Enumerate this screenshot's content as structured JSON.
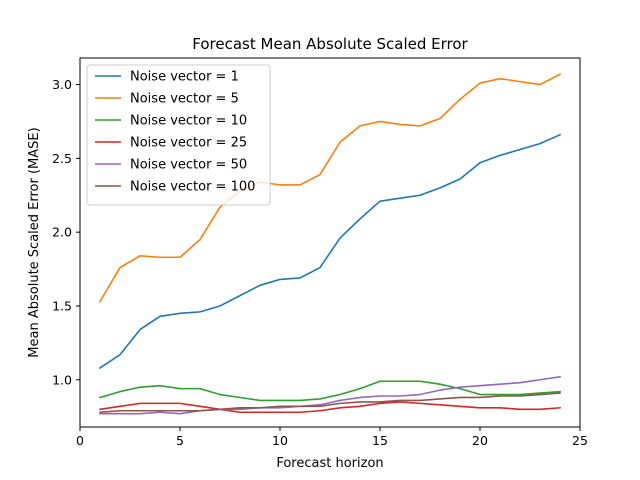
{
  "chart_data": {
    "type": "line",
    "title": "Forecast Mean Absolute Scaled Error",
    "xlabel": "Forecast horizon",
    "ylabel": "Mean Absolute Scaled Error (MASE)",
    "xlim": [
      0,
      25
    ],
    "ylim": [
      0.68,
      3.18
    ],
    "xticks": [
      0,
      5,
      10,
      15,
      20,
      25
    ],
    "yticks": [
      1.0,
      1.5,
      2.0,
      2.5,
      3.0
    ],
    "ytick_labels": [
      "1.0",
      "1.5",
      "2.0",
      "2.5",
      "3.0"
    ],
    "grid": false,
    "legend_position": "top-left",
    "x": [
      1,
      2,
      3,
      4,
      5,
      6,
      7,
      8,
      9,
      10,
      11,
      12,
      13,
      14,
      15,
      16,
      17,
      18,
      19,
      20,
      21,
      22,
      23,
      24
    ],
    "series": [
      {
        "name": "Noise vector = 1",
        "color": "#1f77b4",
        "values": [
          1.08,
          1.17,
          1.34,
          1.43,
          1.45,
          1.46,
          1.5,
          1.57,
          1.64,
          1.68,
          1.69,
          1.76,
          1.96,
          2.09,
          2.21,
          2.23,
          2.25,
          2.3,
          2.36,
          2.47,
          2.52,
          2.56,
          2.6,
          2.66
        ]
      },
      {
        "name": "Noise vector = 5",
        "color": "#ff7f0e",
        "values": [
          1.53,
          1.76,
          1.84,
          1.83,
          1.83,
          1.95,
          2.17,
          2.28,
          2.34,
          2.32,
          2.32,
          2.39,
          2.61,
          2.72,
          2.75,
          2.73,
          2.72,
          2.77,
          2.9,
          3.01,
          3.04,
          3.02,
          3.0,
          3.07
        ]
      },
      {
        "name": "Noise vector = 10",
        "color": "#2ca02c",
        "values": [
          0.88,
          0.92,
          0.95,
          0.96,
          0.94,
          0.94,
          0.9,
          0.88,
          0.86,
          0.86,
          0.86,
          0.87,
          0.9,
          0.94,
          0.99,
          0.99,
          0.99,
          0.97,
          0.94,
          0.9,
          0.9,
          0.9,
          0.91,
          0.92
        ]
      },
      {
        "name": "Noise vector = 25",
        "color": "#d62728",
        "values": [
          0.8,
          0.82,
          0.84,
          0.84,
          0.84,
          0.82,
          0.8,
          0.78,
          0.78,
          0.78,
          0.78,
          0.79,
          0.81,
          0.82,
          0.84,
          0.85,
          0.84,
          0.83,
          0.82,
          0.81,
          0.81,
          0.8,
          0.8,
          0.81
        ]
      },
      {
        "name": "Noise vector = 50",
        "color": "#9467bd",
        "values": [
          0.77,
          0.77,
          0.77,
          0.78,
          0.77,
          0.79,
          0.8,
          0.8,
          0.81,
          0.81,
          0.82,
          0.83,
          0.86,
          0.88,
          0.89,
          0.89,
          0.9,
          0.93,
          0.95,
          0.96,
          0.97,
          0.98,
          1.0,
          1.02
        ]
      },
      {
        "name": "Noise vector = 100",
        "color": "#8c564b",
        "values": [
          0.78,
          0.79,
          0.79,
          0.79,
          0.79,
          0.79,
          0.8,
          0.81,
          0.81,
          0.82,
          0.82,
          0.82,
          0.84,
          0.85,
          0.85,
          0.86,
          0.86,
          0.87,
          0.88,
          0.88,
          0.89,
          0.89,
          0.9,
          0.91
        ]
      }
    ]
  }
}
